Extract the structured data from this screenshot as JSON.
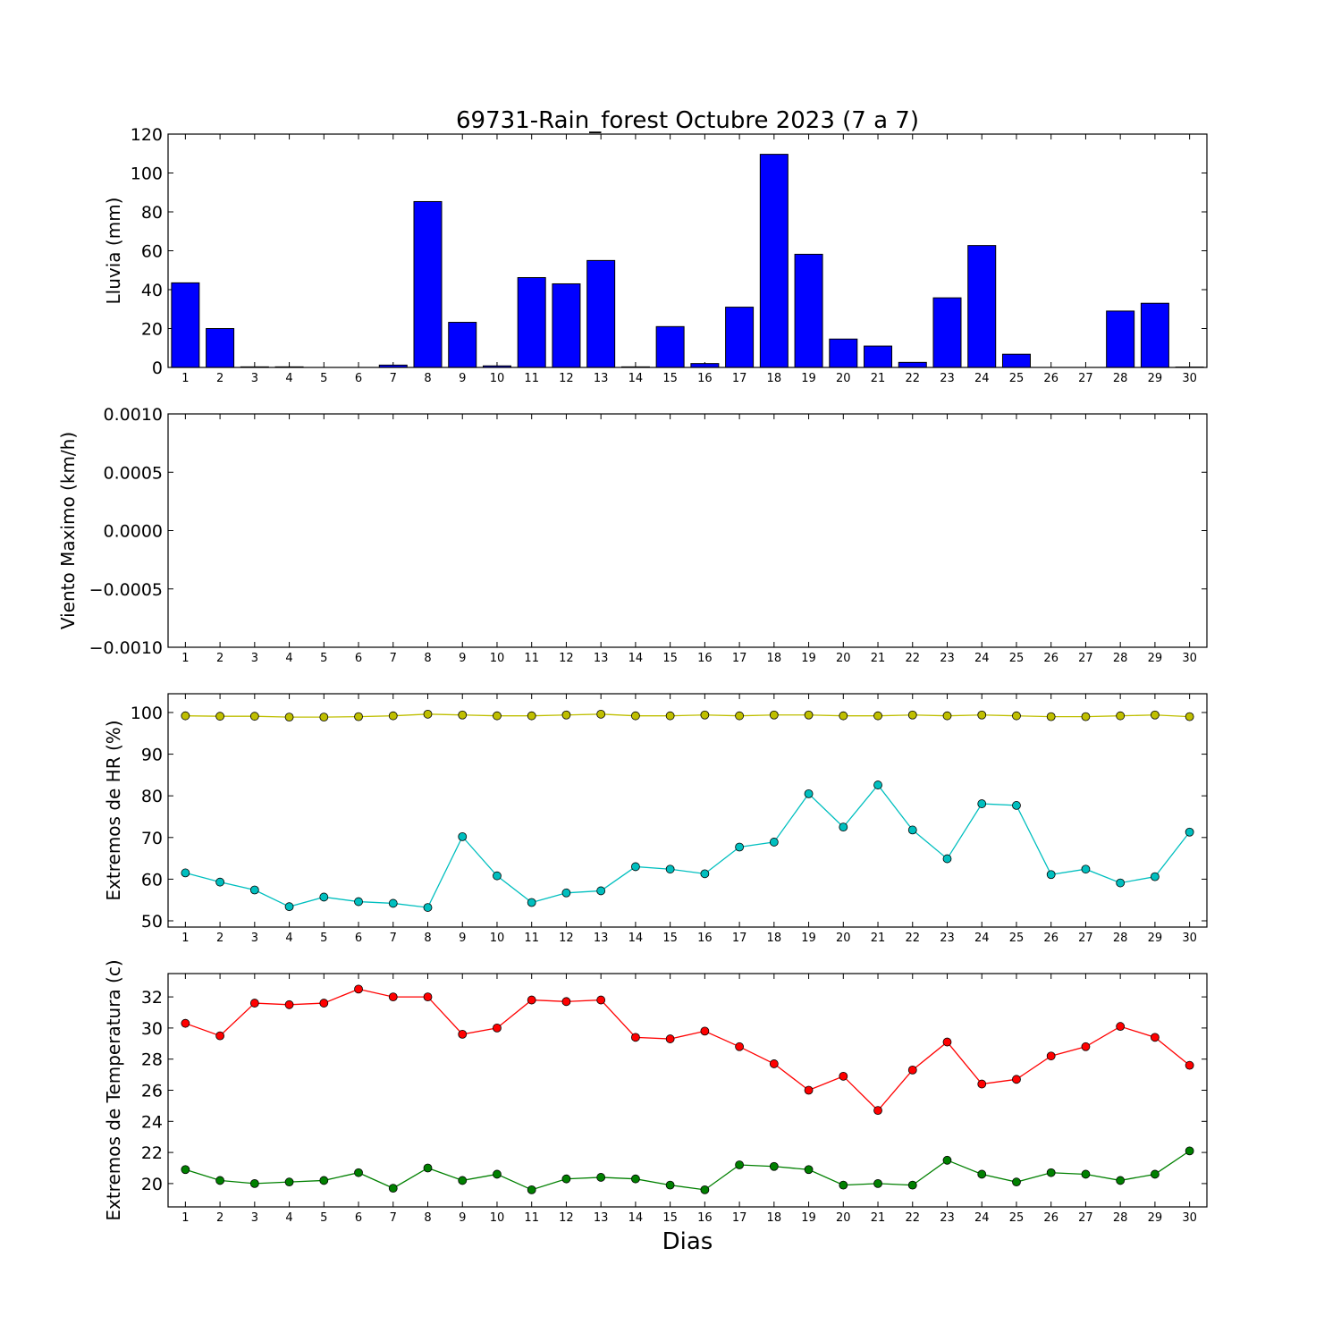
{
  "title": "69731-Rain_forest Octubre 2023  (7 a 7)",
  "xlabel": "Dias",
  "chart_data": [
    {
      "type": "bar",
      "ylabel": "Lluvia (mm)",
      "ylim": [
        0,
        120
      ],
      "yticks": [
        0,
        20,
        40,
        60,
        80,
        100,
        120
      ],
      "ytick_labels": [
        "0",
        "20",
        "40",
        "60",
        "80",
        "100",
        "120"
      ],
      "x": [
        1,
        2,
        3,
        4,
        5,
        6,
        7,
        8,
        9,
        10,
        11,
        12,
        13,
        14,
        15,
        16,
        17,
        18,
        19,
        20,
        21,
        22,
        23,
        24,
        25,
        26,
        27,
        28,
        29,
        30
      ],
      "series": [
        {
          "color": "#0000ff",
          "values": [
            43.5,
            20,
            0.3,
            0.3,
            0,
            0,
            1.2,
            85.3,
            23.2,
            0.8,
            46.2,
            43,
            55,
            0.3,
            21,
            2,
            31,
            109.6,
            58.2,
            14.6,
            11,
            2.6,
            35.8,
            62.7,
            6.8,
            0,
            0,
            29,
            33,
            0.2
          ]
        }
      ]
    },
    {
      "type": "line",
      "ylabel": "Viento Maximo (km/h)",
      "ylim": [
        -0.001,
        0.001
      ],
      "yticks": [
        -0.001,
        -0.0005,
        0,
        0.0005,
        0.001
      ],
      "ytick_labels": [
        "−0.0010",
        "−0.0005",
        "0.0000",
        "0.0005",
        "0.0010"
      ],
      "x": [
        1,
        2,
        3,
        4,
        5,
        6,
        7,
        8,
        9,
        10,
        11,
        12,
        13,
        14,
        15,
        16,
        17,
        18,
        19,
        20,
        21,
        22,
        23,
        24,
        25,
        26,
        27,
        28,
        29,
        30
      ],
      "series": []
    },
    {
      "type": "line",
      "ylabel": "Extremos de HR (%)",
      "ylim": [
        48.5,
        104.5
      ],
      "yticks": [
        50,
        60,
        70,
        80,
        90,
        100
      ],
      "ytick_labels": [
        "50",
        "60",
        "70",
        "80",
        "90",
        "100"
      ],
      "x": [
        1,
        2,
        3,
        4,
        5,
        6,
        7,
        8,
        9,
        10,
        11,
        12,
        13,
        14,
        15,
        16,
        17,
        18,
        19,
        20,
        21,
        22,
        23,
        24,
        25,
        26,
        27,
        28,
        29,
        30
      ],
      "series": [
        {
          "color": "#bfbf00",
          "values": [
            99.2,
            99.1,
            99.1,
            98.9,
            98.9,
            99,
            99.2,
            99.6,
            99.4,
            99.2,
            99.2,
            99.4,
            99.6,
            99.2,
            99.2,
            99.4,
            99.2,
            99.4,
            99.4,
            99.2,
            99.2,
            99.4,
            99.2,
            99.4,
            99.2,
            99,
            99,
            99.2,
            99.4,
            99
          ]
        },
        {
          "color": "#00bfbf",
          "values": [
            61.5,
            59.3,
            57.4,
            53.4,
            55.7,
            54.6,
            54.2,
            53.2,
            70.2,
            60.8,
            54.4,
            56.7,
            57.2,
            63,
            62.4,
            61.3,
            67.7,
            68.9,
            80.5,
            72.5,
            82.6,
            71.8,
            64.9,
            78.1,
            77.7,
            61.1,
            62.4,
            59.1,
            60.6,
            71.3
          ]
        }
      ]
    },
    {
      "type": "line",
      "ylabel": "Extremos de Temperatura (c)",
      "ylim": [
        18.5,
        33.5
      ],
      "yticks": [
        20,
        22,
        24,
        26,
        28,
        30,
        32
      ],
      "ytick_labels": [
        "20",
        "22",
        "24",
        "26",
        "28",
        "30",
        "32"
      ],
      "x": [
        1,
        2,
        3,
        4,
        5,
        6,
        7,
        8,
        9,
        10,
        11,
        12,
        13,
        14,
        15,
        16,
        17,
        18,
        19,
        20,
        21,
        22,
        23,
        24,
        25,
        26,
        27,
        28,
        29,
        30
      ],
      "series": [
        {
          "color": "#ff0000",
          "values": [
            30.3,
            29.5,
            31.6,
            31.5,
            31.6,
            32.5,
            32,
            32,
            29.6,
            30,
            31.8,
            31.7,
            31.8,
            29.4,
            29.3,
            29.8,
            28.8,
            27.7,
            26,
            26.9,
            24.7,
            27.3,
            29.1,
            26.4,
            26.7,
            28.2,
            28.8,
            30.1,
            29.4,
            27.6
          ]
        },
        {
          "color": "#008000",
          "values": [
            20.9,
            20.2,
            20,
            20.1,
            20.2,
            20.7,
            19.7,
            21,
            20.2,
            20.6,
            19.6,
            20.3,
            20.4,
            20.3,
            19.9,
            19.6,
            21.2,
            21.1,
            20.9,
            19.9,
            20,
            19.9,
            21.5,
            20.6,
            20.1,
            20.7,
            20.6,
            20.2,
            20.6,
            22.1
          ]
        }
      ]
    }
  ]
}
